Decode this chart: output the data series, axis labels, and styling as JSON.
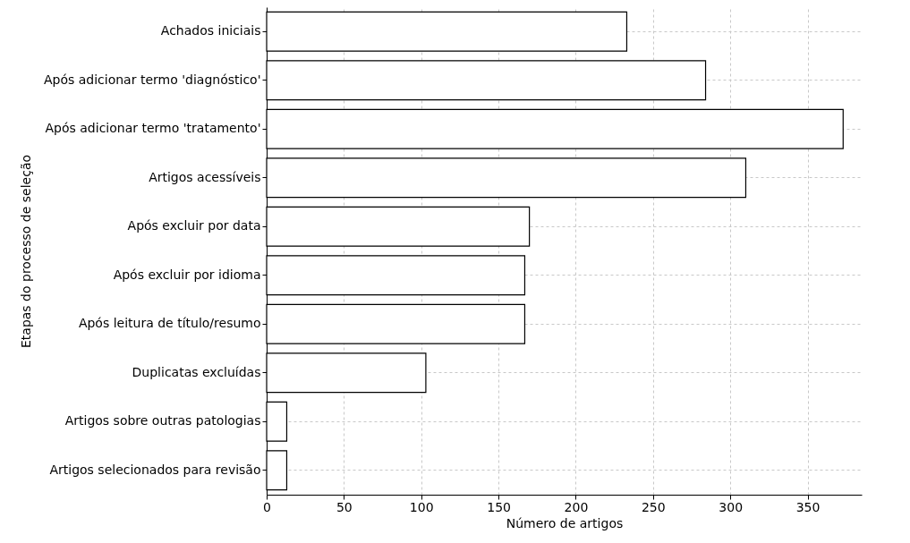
{
  "chart_data": {
    "type": "bar",
    "orientation": "horizontal",
    "xlabel": "Número de artigos",
    "ylabel": "Etapas do processo de seleção",
    "categories": [
      "Achados iniciais",
      "Após adicionar termo 'diagnóstico'",
      "Após adicionar termo 'tratamento'",
      "Artigos acessíveis",
      "Após excluir por data",
      "Após excluir por idioma",
      "Após leitura de título/resumo",
      "Duplicatas excluídas",
      "Artigos sobre outras patologias",
      "Artigos selecionados para revisão"
    ],
    "values": [
      233,
      284,
      373,
      310,
      170,
      167,
      167,
      103,
      13,
      13
    ],
    "color": "#ffffff",
    "xlim": [
      0,
      385
    ],
    "xticks": [
      0,
      50,
      100,
      150,
      200,
      250,
      300,
      350
    ],
    "grid": true
  }
}
